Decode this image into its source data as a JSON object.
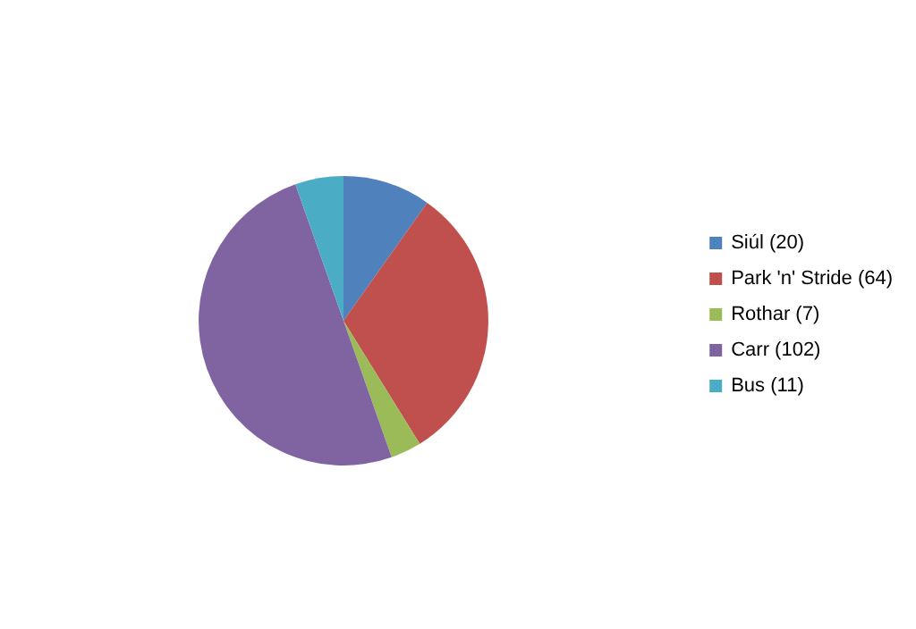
{
  "chart_data": {
    "type": "pie",
    "categories": [
      "Siúl (20)",
      "Park 'n' Stride (64)",
      "Rothar (7)",
      "Carr (102)",
      "Bus (11)"
    ],
    "values": [
      20,
      64,
      7,
      102,
      11
    ],
    "colors": [
      "#4f81bd",
      "#c0504d",
      "#9bbb59",
      "#8064a2",
      "#4bacc6"
    ],
    "legend": "right"
  }
}
